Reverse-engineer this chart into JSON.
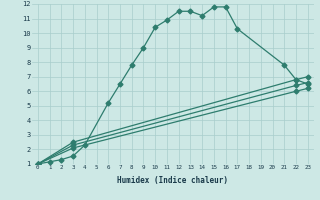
{
  "xlabel": "Humidex (Indice chaleur)",
  "xlim": [
    -0.5,
    23.5
  ],
  "ylim": [
    1,
    12
  ],
  "xticks": [
    0,
    1,
    2,
    3,
    4,
    5,
    6,
    7,
    8,
    9,
    10,
    11,
    12,
    13,
    14,
    15,
    16,
    17,
    18,
    19,
    20,
    21,
    22,
    23
  ],
  "yticks": [
    1,
    2,
    3,
    4,
    5,
    6,
    7,
    8,
    9,
    10,
    11,
    12
  ],
  "background_color": "#cde8e5",
  "grid_color": "#a8cecc",
  "line_color": "#2e7d6e",
  "series": [
    {
      "x": [
        0,
        1,
        2,
        3,
        4,
        6,
        7,
        8,
        9,
        10,
        11,
        12,
        13,
        14,
        15,
        16,
        17,
        21,
        22,
        23
      ],
      "y": [
        1,
        1.15,
        1.3,
        1.55,
        2.3,
        5.2,
        6.5,
        7.8,
        9.0,
        10.4,
        10.9,
        11.5,
        11.5,
        11.2,
        11.8,
        11.8,
        10.3,
        7.8,
        6.8,
        6.5
      ],
      "marker": "D",
      "markersize": 2.5,
      "linewidth": 0.9
    },
    {
      "x": [
        0,
        3,
        22,
        23
      ],
      "y": [
        1,
        2.5,
        6.8,
        7.0
      ],
      "marker": "D",
      "markersize": 2.5,
      "linewidth": 0.9
    },
    {
      "x": [
        0,
        3,
        22,
        23
      ],
      "y": [
        1,
        2.3,
        6.4,
        6.6
      ],
      "marker": "D",
      "markersize": 2.5,
      "linewidth": 0.9
    },
    {
      "x": [
        0,
        3,
        22,
        23
      ],
      "y": [
        1,
        2.1,
        6.0,
        6.2
      ],
      "marker": "D",
      "markersize": 2.5,
      "linewidth": 0.9
    }
  ]
}
